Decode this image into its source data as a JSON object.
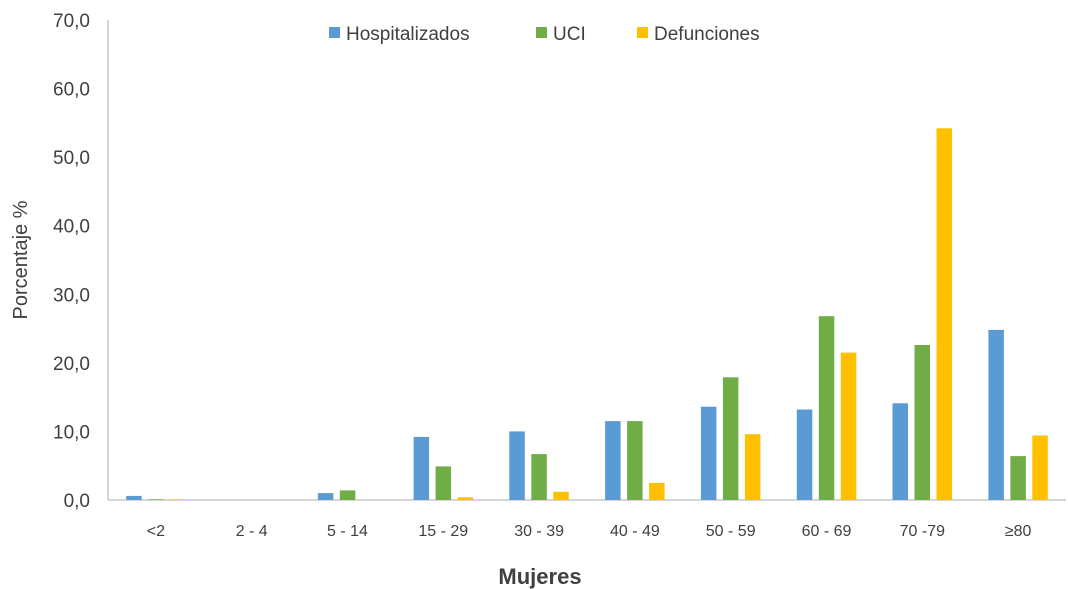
{
  "chart_data": {
    "type": "bar",
    "categories": [
      "<2",
      "2 - 4",
      "5 - 14",
      "15 - 29",
      "30 - 39",
      "40 - 49",
      "50 - 59",
      "60 - 69",
      "70 -79",
      "≥80"
    ],
    "series": [
      {
        "name": "Hospitalizados",
        "color": "#5B9BD5",
        "values": [
          0.6,
          0.0,
          1.0,
          9.2,
          10.0,
          11.5,
          13.6,
          13.2,
          14.1,
          24.8
        ]
      },
      {
        "name": "UCI",
        "color": "#70AD47",
        "values": [
          0.1,
          0.0,
          1.4,
          4.9,
          6.7,
          11.5,
          17.9,
          26.8,
          22.6,
          6.4
        ]
      },
      {
        "name": "Defunciones",
        "color": "#FFC000",
        "values": [
          0.1,
          0.0,
          0.0,
          0.4,
          1.2,
          2.5,
          9.6,
          21.5,
          54.2,
          9.4
        ]
      }
    ],
    "title": "",
    "xlabel": "Mujeres",
    "ylabel": "Porcentaje %",
    "ylim": [
      0,
      70
    ],
    "yticks": [
      "0,0",
      "10,0",
      "20,0",
      "30,0",
      "40,0",
      "50,0",
      "60,0",
      "70,0"
    ],
    "grid": false,
    "legend_position": "top"
  }
}
